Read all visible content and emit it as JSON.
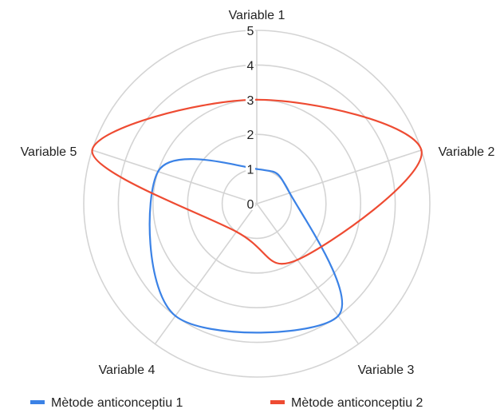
{
  "chart_data": {
    "type": "radar",
    "axes": [
      "Variable 1",
      "Variable 2",
      "Variable 3",
      "Variable 4",
      "Variable 5"
    ],
    "r_ticks": [
      0,
      1,
      2,
      3,
      4,
      5
    ],
    "rlim": [
      0,
      5
    ],
    "grid": true,
    "grid_shape": "circle",
    "legend_position": "bottom",
    "series": [
      {
        "name": "Mètode anticonceptiu 1",
        "color": "#3b82e6",
        "values": [
          1,
          1,
          4,
          4,
          3
        ]
      },
      {
        "name": "Mètode anticonceptiu 2",
        "color": "#ee4b32",
        "values": [
          3,
          5,
          2,
          1,
          5
        ]
      }
    ]
  }
}
